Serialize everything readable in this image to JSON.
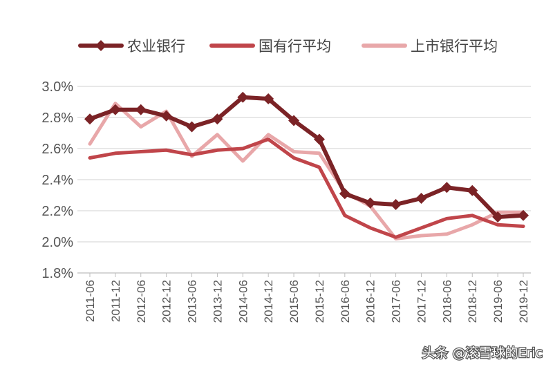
{
  "chart_data": {
    "type": "line",
    "categories": [
      "2011-06",
      "2011-12",
      "2012-06",
      "2012-12",
      "2013-06",
      "2013-12",
      "2014-06",
      "2014-12",
      "2015-06",
      "2015-12",
      "2016-06",
      "2016-12",
      "2017-06",
      "2017-12",
      "2018-06",
      "2018-12",
      "2019-06",
      "2019-12"
    ],
    "series": [
      {
        "name": "农业银行",
        "color": "#7b2326",
        "marker": "diamond",
        "values": [
          2.79,
          2.85,
          2.85,
          2.81,
          2.74,
          2.79,
          2.93,
          2.92,
          2.78,
          2.66,
          2.31,
          2.25,
          2.24,
          2.28,
          2.35,
          2.33,
          2.16,
          2.17
        ]
      },
      {
        "name": "国有行平均",
        "color": "#c0454a",
        "marker": "none",
        "values": [
          2.54,
          2.57,
          2.58,
          2.59,
          2.56,
          2.59,
          2.6,
          2.66,
          2.54,
          2.48,
          2.17,
          2.09,
          2.03,
          2.09,
          2.15,
          2.17,
          2.11,
          2.1
        ]
      },
      {
        "name": "上市银行平均",
        "color": "#e8a7a9",
        "marker": "none",
        "values": [
          2.63,
          2.89,
          2.74,
          2.84,
          2.55,
          2.69,
          2.52,
          2.69,
          2.58,
          2.57,
          2.32,
          2.23,
          2.02,
          2.04,
          2.05,
          2.11,
          2.19,
          2.19
        ]
      }
    ],
    "ylim": [
      1.8,
      3.0
    ],
    "yticks": [
      1.8,
      2.0,
      2.2,
      2.4,
      2.6,
      2.8,
      3.0
    ],
    "ytick_labels": [
      "1.8%",
      "2.0%",
      "2.2%",
      "2.4%",
      "2.6%",
      "2.8%",
      "3.0%"
    ],
    "grid": true,
    "legend_position": "top",
    "title": "",
    "xlabel": "",
    "ylabel": ""
  },
  "watermark": "头条 @滚雪球的Eric"
}
